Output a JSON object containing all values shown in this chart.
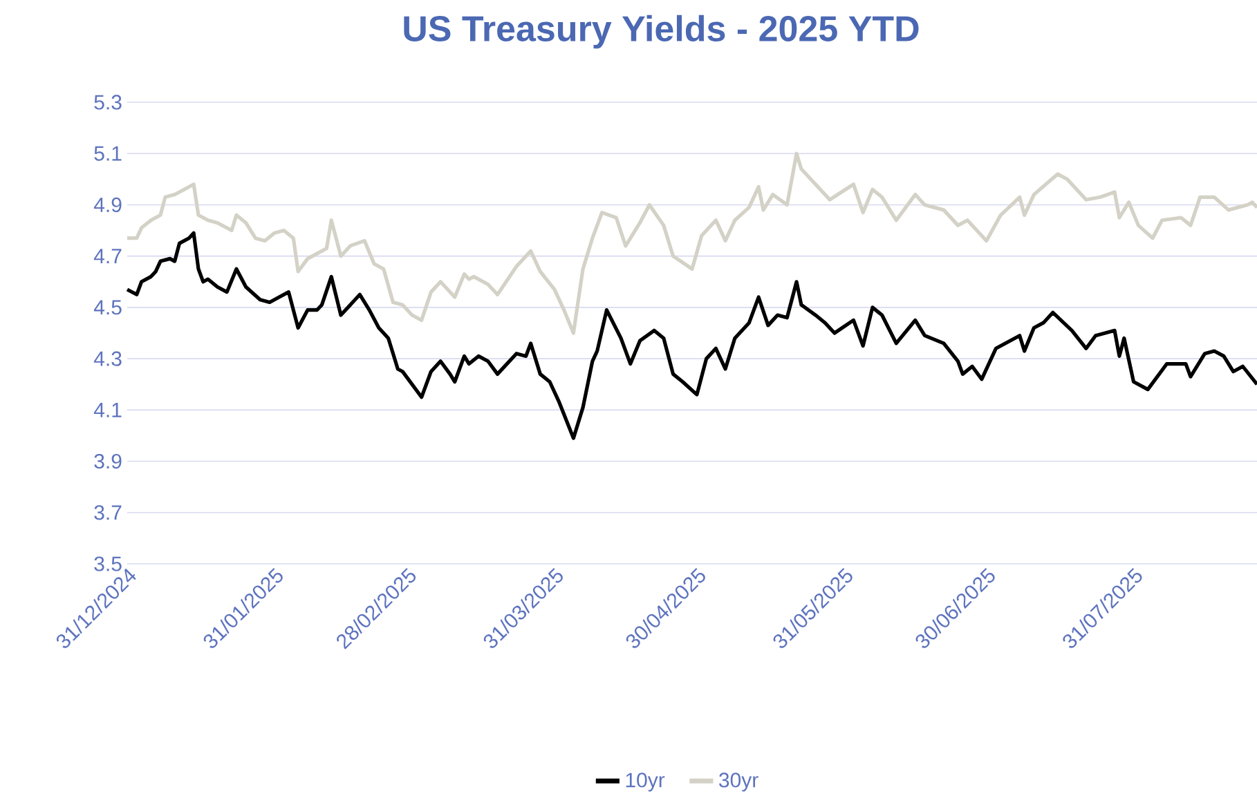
{
  "chart_data": {
    "type": "line",
    "title": "US Treasury Yields - 2025 YTD",
    "xlim": [
      "2024-12-31",
      "2025-08-26"
    ],
    "xticks": [
      {
        "value": "2024-12-31",
        "label": "31/12/2024"
      },
      {
        "value": "2025-01-31",
        "label": "31/01/2025"
      },
      {
        "value": "2025-02-28",
        "label": "28/02/2025"
      },
      {
        "value": "2025-03-31",
        "label": "31/03/2025"
      },
      {
        "value": "2025-04-30",
        "label": "30/04/2025"
      },
      {
        "value": "2025-05-31",
        "label": "31/05/2025"
      },
      {
        "value": "2025-06-30",
        "label": "30/06/2025"
      },
      {
        "value": "2025-07-31",
        "label": "31/07/2025"
      }
    ],
    "ylim": [
      3.5,
      5.3
    ],
    "yticks": [
      3.5,
      3.7,
      3.9,
      4.1,
      4.3,
      4.5,
      4.7,
      4.9,
      5.1,
      5.3
    ],
    "grid": "y",
    "legend": "bottom",
    "series": [
      {
        "name": "10yr",
        "color": "#000000",
        "x": [
          "2024-12-31",
          "2025-01-02",
          "2025-01-03",
          "2025-01-05",
          "2025-01-06",
          "2025-01-07",
          "2025-01-09",
          "2025-01-10",
          "2025-01-11",
          "2025-01-13",
          "2025-01-14",
          "2025-01-15",
          "2025-01-16",
          "2025-01-17",
          "2025-01-19",
          "2025-01-21",
          "2025-01-23",
          "2025-01-25",
          "2025-01-28",
          "2025-01-30",
          "2025-02-01",
          "2025-02-03",
          "2025-02-05",
          "2025-02-07",
          "2025-02-09",
          "2025-02-10",
          "2025-02-12",
          "2025-02-14",
          "2025-02-16",
          "2025-02-18",
          "2025-02-20",
          "2025-02-22",
          "2025-02-24",
          "2025-02-26",
          "2025-02-27",
          "2025-03-01",
          "2025-03-03",
          "2025-03-05",
          "2025-03-07",
          "2025-03-09",
          "2025-03-10",
          "2025-03-12",
          "2025-03-13",
          "2025-03-15",
          "2025-03-17",
          "2025-03-19",
          "2025-03-23",
          "2025-03-25",
          "2025-03-26",
          "2025-03-28",
          "2025-03-30",
          "2025-04-01",
          "2025-04-04",
          "2025-04-06",
          "2025-04-08",
          "2025-04-09",
          "2025-04-11",
          "2025-04-14",
          "2025-04-16",
          "2025-04-18",
          "2025-04-21",
          "2025-04-23",
          "2025-04-25",
          "2025-04-27",
          "2025-04-30",
          "2025-05-02",
          "2025-05-04",
          "2025-05-06",
          "2025-05-08",
          "2025-05-11",
          "2025-05-13",
          "2025-05-15",
          "2025-05-17",
          "2025-05-19",
          "2025-05-21",
          "2025-05-22",
          "2025-05-25",
          "2025-05-27",
          "2025-05-29",
          "2025-06-02",
          "2025-06-04",
          "2025-06-06",
          "2025-06-08",
          "2025-06-11",
          "2025-06-15",
          "2025-06-17",
          "2025-06-21",
          "2025-06-24",
          "2025-06-25",
          "2025-06-27",
          "2025-06-29",
          "2025-07-02",
          "2025-07-07",
          "2025-07-08",
          "2025-07-10",
          "2025-07-12",
          "2025-07-14",
          "2025-07-18",
          "2025-07-21",
          "2025-07-23",
          "2025-07-27",
          "2025-07-28",
          "2025-07-29",
          "2025-07-31",
          "2025-08-03",
          "2025-08-07",
          "2025-08-11",
          "2025-08-12",
          "2025-08-15",
          "2025-08-17",
          "2025-08-19",
          "2025-08-21",
          "2025-08-23",
          "2025-08-26"
        ],
        "values": [
          4.57,
          4.55,
          4.6,
          4.62,
          4.64,
          4.68,
          4.69,
          4.68,
          4.75,
          4.77,
          4.79,
          4.65,
          4.6,
          4.61,
          4.58,
          4.56,
          4.65,
          4.58,
          4.53,
          4.52,
          4.54,
          4.56,
          4.42,
          4.49,
          4.49,
          4.51,
          4.62,
          4.47,
          4.51,
          4.55,
          4.49,
          4.42,
          4.38,
          4.26,
          4.25,
          4.2,
          4.15,
          4.25,
          4.29,
          4.24,
          4.21,
          4.31,
          4.28,
          4.31,
          4.29,
          4.24,
          4.32,
          4.31,
          4.36,
          4.24,
          4.21,
          4.13,
          3.99,
          4.11,
          4.29,
          4.33,
          4.49,
          4.38,
          4.28,
          4.37,
          4.41,
          4.38,
          4.24,
          4.21,
          4.16,
          4.3,
          4.34,
          4.26,
          4.38,
          4.44,
          4.54,
          4.43,
          4.47,
          4.46,
          4.6,
          4.51,
          4.47,
          4.44,
          4.4,
          4.45,
          4.35,
          4.5,
          4.47,
          4.36,
          4.45,
          4.39,
          4.36,
          4.29,
          4.24,
          4.27,
          4.22,
          4.34,
          4.39,
          4.33,
          4.42,
          4.44,
          4.48,
          4.41,
          4.34,
          4.39,
          4.41,
          4.31,
          4.38,
          4.21,
          4.18,
          4.28,
          4.28,
          4.23,
          4.32,
          4.33,
          4.31,
          4.25,
          4.27,
          4.2
        ]
      },
      {
        "name": "30yr",
        "color": "#d4d1c6",
        "x": [
          "2024-12-31",
          "2025-01-02",
          "2025-01-03",
          "2025-01-05",
          "2025-01-07",
          "2025-01-08",
          "2025-01-10",
          "2025-01-12",
          "2025-01-14",
          "2025-01-15",
          "2025-01-17",
          "2025-01-19",
          "2025-01-22",
          "2025-01-23",
          "2025-01-25",
          "2025-01-27",
          "2025-01-29",
          "2025-01-31",
          "2025-02-02",
          "2025-02-04",
          "2025-02-05",
          "2025-02-07",
          "2025-02-09",
          "2025-02-11",
          "2025-02-12",
          "2025-02-14",
          "2025-02-16",
          "2025-02-19",
          "2025-02-21",
          "2025-02-23",
          "2025-02-25",
          "2025-02-27",
          "2025-03-01",
          "2025-03-03",
          "2025-03-05",
          "2025-03-07",
          "2025-03-10",
          "2025-03-12",
          "2025-03-13",
          "2025-03-14",
          "2025-03-17",
          "2025-03-19",
          "2025-03-23",
          "2025-03-26",
          "2025-03-28",
          "2025-03-31",
          "2025-04-02",
          "2025-04-04",
          "2025-04-06",
          "2025-04-08",
          "2025-04-10",
          "2025-04-13",
          "2025-04-15",
          "2025-04-18",
          "2025-04-20",
          "2025-04-23",
          "2025-04-25",
          "2025-04-29",
          "2025-05-01",
          "2025-05-04",
          "2025-05-06",
          "2025-05-08",
          "2025-05-11",
          "2025-05-13",
          "2025-05-14",
          "2025-05-16",
          "2025-05-19",
          "2025-05-21",
          "2025-05-22",
          "2025-05-26",
          "2025-05-28",
          "2025-06-02",
          "2025-06-04",
          "2025-06-06",
          "2025-06-08",
          "2025-06-11",
          "2025-06-15",
          "2025-06-17",
          "2025-06-21",
          "2025-06-24",
          "2025-06-26",
          "2025-06-30",
          "2025-07-03",
          "2025-07-07",
          "2025-07-08",
          "2025-07-10",
          "2025-07-15",
          "2025-07-17",
          "2025-07-21",
          "2025-07-24",
          "2025-07-27",
          "2025-07-28",
          "2025-07-30",
          "2025-08-01",
          "2025-08-04",
          "2025-08-06",
          "2025-08-10",
          "2025-08-12",
          "2025-08-14",
          "2025-08-17",
          "2025-08-20",
          "2025-08-24",
          "2025-08-25",
          "2025-08-26"
        ],
        "values": [
          4.77,
          4.77,
          4.81,
          4.84,
          4.86,
          4.93,
          4.94,
          4.96,
          4.98,
          4.86,
          4.84,
          4.83,
          4.8,
          4.86,
          4.83,
          4.77,
          4.76,
          4.79,
          4.8,
          4.77,
          4.64,
          4.69,
          4.71,
          4.73,
          4.84,
          4.7,
          4.74,
          4.76,
          4.67,
          4.65,
          4.52,
          4.51,
          4.47,
          4.45,
          4.56,
          4.6,
          4.54,
          4.63,
          4.61,
          4.62,
          4.59,
          4.55,
          4.66,
          4.72,
          4.64,
          4.57,
          4.49,
          4.4,
          4.65,
          4.77,
          4.87,
          4.85,
          4.74,
          4.83,
          4.9,
          4.82,
          4.7,
          4.65,
          4.78,
          4.84,
          4.76,
          4.84,
          4.89,
          4.97,
          4.88,
          4.94,
          4.9,
          5.1,
          5.04,
          4.96,
          4.92,
          4.98,
          4.87,
          4.96,
          4.93,
          4.84,
          4.94,
          4.9,
          4.88,
          4.82,
          4.84,
          4.76,
          4.86,
          4.93,
          4.86,
          4.94,
          5.02,
          5.0,
          4.92,
          4.93,
          4.95,
          4.85,
          4.91,
          4.82,
          4.77,
          4.84,
          4.85,
          4.82,
          4.93,
          4.93,
          4.88,
          4.9,
          4.91,
          4.89
        ]
      }
    ]
  }
}
